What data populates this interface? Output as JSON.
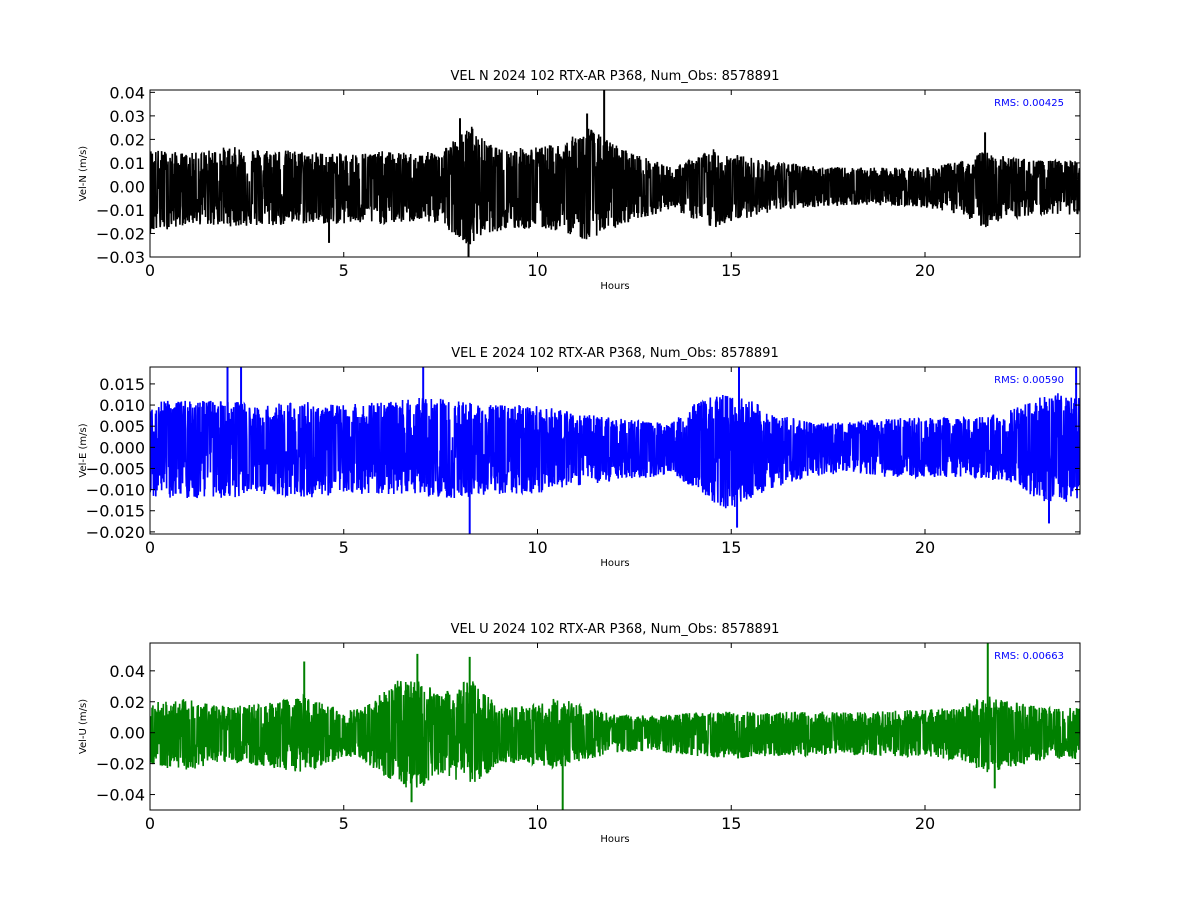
{
  "chart_data": [
    {
      "type": "line",
      "title": "VEL N 2024 102 RTX-AR  P368, Num_Obs: 8578891",
      "xlabel": "Hours",
      "ylabel": "Vel-N (m/s)",
      "xlim": [
        0,
        24
      ],
      "ylim": [
        -0.03,
        0.041
      ],
      "xticks": [
        "0",
        "5",
        "10",
        "15",
        "20"
      ],
      "yticks": [
        "−0.03",
        "−0.02",
        "−0.01",
        "0.00",
        "0.01",
        "0.02",
        "0.03",
        "0.04"
      ],
      "color": "#000000",
      "rms_label": "RMS:  0.00425",
      "rms_color": "#0000ff",
      "envelope": {
        "x": [
          0,
          1,
          2,
          3,
          4,
          5,
          6,
          7,
          7.5,
          8,
          8.3,
          8.6,
          9,
          10,
          10.5,
          11,
          11.3,
          11.6,
          12,
          12.5,
          13,
          13.5,
          14,
          14.5,
          15,
          16,
          17,
          18,
          19,
          20,
          21,
          21.5,
          22,
          23,
          24
        ],
        "upper": [
          0.016,
          0.014,
          0.017,
          0.016,
          0.015,
          0.014,
          0.015,
          0.014,
          0.016,
          0.022,
          0.026,
          0.02,
          0.016,
          0.017,
          0.018,
          0.022,
          0.026,
          0.022,
          0.018,
          0.014,
          0.011,
          0.008,
          0.012,
          0.016,
          0.014,
          0.011,
          0.009,
          0.008,
          0.008,
          0.008,
          0.011,
          0.015,
          0.013,
          0.011,
          0.011
        ],
        "lower": [
          -0.02,
          -0.016,
          -0.017,
          -0.017,
          -0.016,
          -0.016,
          -0.016,
          -0.015,
          -0.016,
          -0.022,
          -0.026,
          -0.02,
          -0.019,
          -0.018,
          -0.019,
          -0.021,
          -0.024,
          -0.02,
          -0.018,
          -0.014,
          -0.012,
          -0.009,
          -0.014,
          -0.018,
          -0.015,
          -0.011,
          -0.009,
          -0.008,
          -0.008,
          -0.009,
          -0.012,
          -0.018,
          -0.014,
          -0.012,
          -0.012
        ]
      },
      "spikes": [
        {
          "x": 11.72,
          "y": 0.041
        },
        {
          "x": 11.28,
          "y": 0.031
        },
        {
          "x": 8.22,
          "y": -0.03
        },
        {
          "x": 8.0,
          "y": 0.029
        },
        {
          "x": 21.55,
          "y": 0.023
        },
        {
          "x": 4.62,
          "y": -0.024
        }
      ]
    },
    {
      "type": "line",
      "title": "VEL E 2024 102 RTX-AR  P368, Num_Obs: 8578891",
      "xlabel": "Hours",
      "ylabel": "Vel-E (m/s)",
      "xlim": [
        0,
        24
      ],
      "ylim": [
        -0.0205,
        0.019
      ],
      "xticks": [
        "0",
        "5",
        "10",
        "15",
        "20"
      ],
      "yticks": [
        "−0.020",
        "−0.015",
        "−0.010",
        "−0.005",
        "0.000",
        "0.005",
        "0.010",
        "0.015"
      ],
      "color": "#0000ff",
      "rms_label": "RMS:  0.00590",
      "rms_color": "#0000ff",
      "envelope": {
        "x": [
          0,
          1,
          2,
          3,
          4,
          5,
          6,
          7,
          8,
          9,
          10,
          11,
          12,
          13,
          13.5,
          14,
          14.5,
          15,
          15.5,
          16,
          17,
          18,
          19,
          20,
          21,
          22,
          22.5,
          23,
          23.5,
          24
        ],
        "upper": [
          0.011,
          0.011,
          0.011,
          0.01,
          0.011,
          0.01,
          0.011,
          0.012,
          0.011,
          0.01,
          0.01,
          0.008,
          0.007,
          0.006,
          0.006,
          0.01,
          0.012,
          0.013,
          0.011,
          0.009,
          0.006,
          0.006,
          0.007,
          0.007,
          0.007,
          0.008,
          0.01,
          0.012,
          0.013,
          0.012
        ],
        "lower": [
          -0.012,
          -0.012,
          -0.012,
          -0.011,
          -0.012,
          -0.011,
          -0.011,
          -0.012,
          -0.012,
          -0.011,
          -0.011,
          -0.009,
          -0.008,
          -0.007,
          -0.006,
          -0.01,
          -0.013,
          -0.015,
          -0.012,
          -0.01,
          -0.007,
          -0.006,
          -0.007,
          -0.007,
          -0.007,
          -0.008,
          -0.01,
          -0.013,
          -0.014,
          -0.012
        ]
      },
      "spikes": [
        {
          "x": 2.0,
          "y": 0.019
        },
        {
          "x": 2.35,
          "y": 0.019
        },
        {
          "x": 7.05,
          "y": 0.019
        },
        {
          "x": 8.25,
          "y": -0.0205
        },
        {
          "x": 15.2,
          "y": 0.019
        },
        {
          "x": 23.9,
          "y": 0.019
        },
        {
          "x": 15.15,
          "y": -0.019
        },
        {
          "x": 23.2,
          "y": -0.018
        }
      ]
    },
    {
      "type": "line",
      "title": "VEL U 2024 102 RTX-AR  P368, Num_Obs: 8578891",
      "xlabel": "Hours",
      "ylabel": "Vel-U (m/s)",
      "xlim": [
        0,
        24
      ],
      "ylim": [
        -0.05,
        0.058
      ],
      "xticks": [
        "0",
        "5",
        "10",
        "15",
        "20"
      ],
      "yticks": [
        "−0.04",
        "−0.02",
        "0.00",
        "0.02",
        "0.04"
      ],
      "color": "#008000",
      "rms_label": "RMS:  0.00663",
      "rms_color": "#0000ff",
      "envelope": {
        "x": [
          0,
          1,
          2,
          3,
          4,
          5,
          5.5,
          6,
          6.5,
          7,
          7.5,
          8,
          8.3,
          8.7,
          9,
          10,
          10.5,
          11,
          12,
          13,
          14,
          15,
          16,
          17,
          18,
          19,
          20,
          21,
          21.5,
          22,
          23,
          24
        ],
        "upper": [
          0.02,
          0.022,
          0.017,
          0.019,
          0.024,
          0.014,
          0.016,
          0.026,
          0.036,
          0.034,
          0.024,
          0.032,
          0.034,
          0.026,
          0.016,
          0.018,
          0.024,
          0.019,
          0.012,
          0.011,
          0.013,
          0.014,
          0.013,
          0.014,
          0.013,
          0.014,
          0.015,
          0.017,
          0.025,
          0.022,
          0.016,
          0.016
        ],
        "lower": [
          -0.022,
          -0.024,
          -0.019,
          -0.022,
          -0.026,
          -0.016,
          -0.018,
          -0.028,
          -0.037,
          -0.036,
          -0.026,
          -0.032,
          -0.034,
          -0.028,
          -0.019,
          -0.021,
          -0.024,
          -0.019,
          -0.013,
          -0.012,
          -0.015,
          -0.017,
          -0.015,
          -0.015,
          -0.014,
          -0.015,
          -0.016,
          -0.018,
          -0.026,
          -0.024,
          -0.018,
          -0.017
        ]
      },
      "spikes": [
        {
          "x": 3.98,
          "y": 0.046
        },
        {
          "x": 6.9,
          "y": 0.051
        },
        {
          "x": 8.25,
          "y": 0.049
        },
        {
          "x": 10.65,
          "y": -0.05
        },
        {
          "x": 21.62,
          "y": 0.058
        },
        {
          "x": 6.75,
          "y": -0.045
        },
        {
          "x": 21.8,
          "y": -0.036
        }
      ]
    }
  ]
}
